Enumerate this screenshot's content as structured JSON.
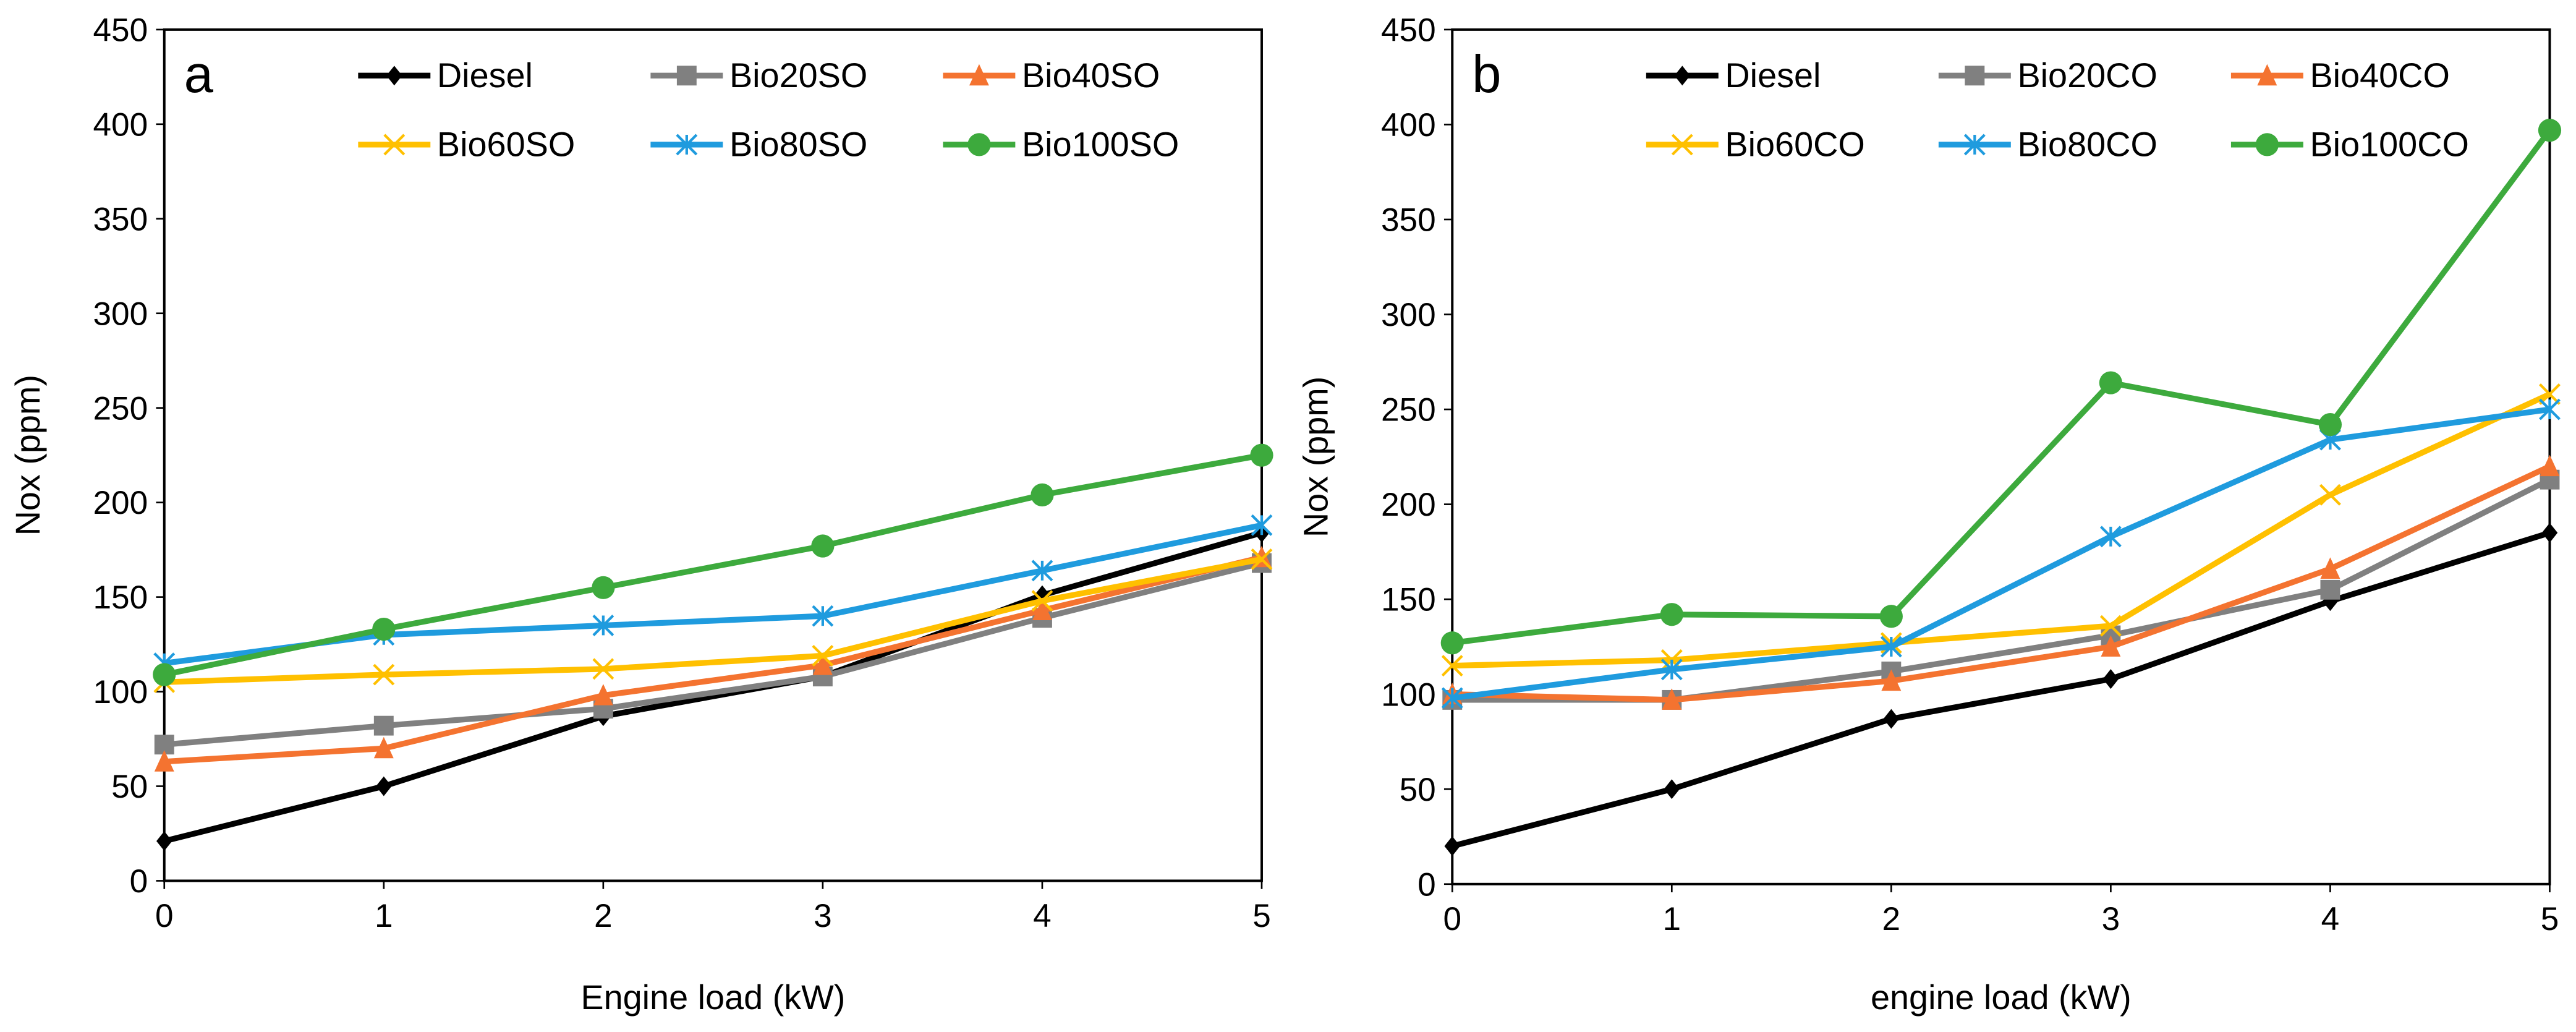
{
  "chart_data": [
    {
      "type": "line",
      "panel_label": "a",
      "xlabel": "Engine load (kW)",
      "ylabel": "Nox (ppm)",
      "x": [
        0,
        1,
        2,
        3,
        4,
        5
      ],
      "xlim": [
        0,
        5
      ],
      "ylim": [
        0,
        450
      ],
      "yticks": [
        0,
        50,
        100,
        150,
        200,
        250,
        300,
        350,
        400,
        450
      ],
      "grid": false,
      "legend": "top",
      "series": [
        {
          "name": "Diesel",
          "color": "#000000",
          "marker": "diamond",
          "values": [
            21,
            50,
            87,
            108,
            151,
            184
          ]
        },
        {
          "name": "Bio20SO",
          "color": "#808080",
          "marker": "square",
          "values": [
            72,
            82,
            91,
            108,
            139,
            168
          ]
        },
        {
          "name": "Bio40SO",
          "color": "#F47330",
          "marker": "triangle",
          "values": [
            63,
            70,
            98,
            114,
            143,
            171
          ]
        },
        {
          "name": "Bio60SO",
          "color": "#FFC000",
          "marker": "x",
          "values": [
            105,
            109,
            112,
            119,
            148,
            170
          ]
        },
        {
          "name": "Bio80SO",
          "color": "#1F9BDE",
          "marker": "asterisk",
          "values": [
            115,
            130,
            135,
            140,
            164,
            188
          ]
        },
        {
          "name": "Bio100SO",
          "color": "#3DAA3D",
          "marker": "circle",
          "values": [
            109,
            133,
            155,
            177,
            204,
            225
          ]
        }
      ]
    },
    {
      "type": "line",
      "panel_label": "b",
      "xlabel": "engine load (kW)",
      "ylabel": "Nox (ppm)",
      "x": [
        0,
        1,
        2,
        3,
        4,
        5
      ],
      "xlim": [
        0,
        5
      ],
      "ylim": [
        0,
        450
      ],
      "yticks": [
        0,
        50,
        100,
        150,
        200,
        250,
        300,
        350,
        400,
        450
      ],
      "grid": false,
      "legend": "top",
      "series": [
        {
          "name": "Diesel",
          "color": "#000000",
          "marker": "diamond",
          "values": [
            20,
            50,
            87,
            108,
            149,
            185
          ]
        },
        {
          "name": "Bio20CO",
          "color": "#808080",
          "marker": "square",
          "values": [
            97,
            97,
            112,
            131,
            155,
            213
          ]
        },
        {
          "name": "Bio40CO",
          "color": "#F47330",
          "marker": "triangle",
          "values": [
            100,
            97,
            107,
            125,
            166,
            220
          ]
        },
        {
          "name": "Bio60CO",
          "color": "#FFC000",
          "marker": "x",
          "values": [
            115,
            118,
            127,
            136,
            205,
            258
          ]
        },
        {
          "name": "Bio80CO",
          "color": "#1F9BDE",
          "marker": "asterisk",
          "values": [
            98,
            113,
            125,
            183,
            234,
            250
          ]
        },
        {
          "name": "Bio100CO",
          "color": "#3DAA3D",
          "marker": "circle",
          "values": [
            127,
            142,
            141,
            264,
            242,
            397
          ]
        }
      ]
    }
  ]
}
